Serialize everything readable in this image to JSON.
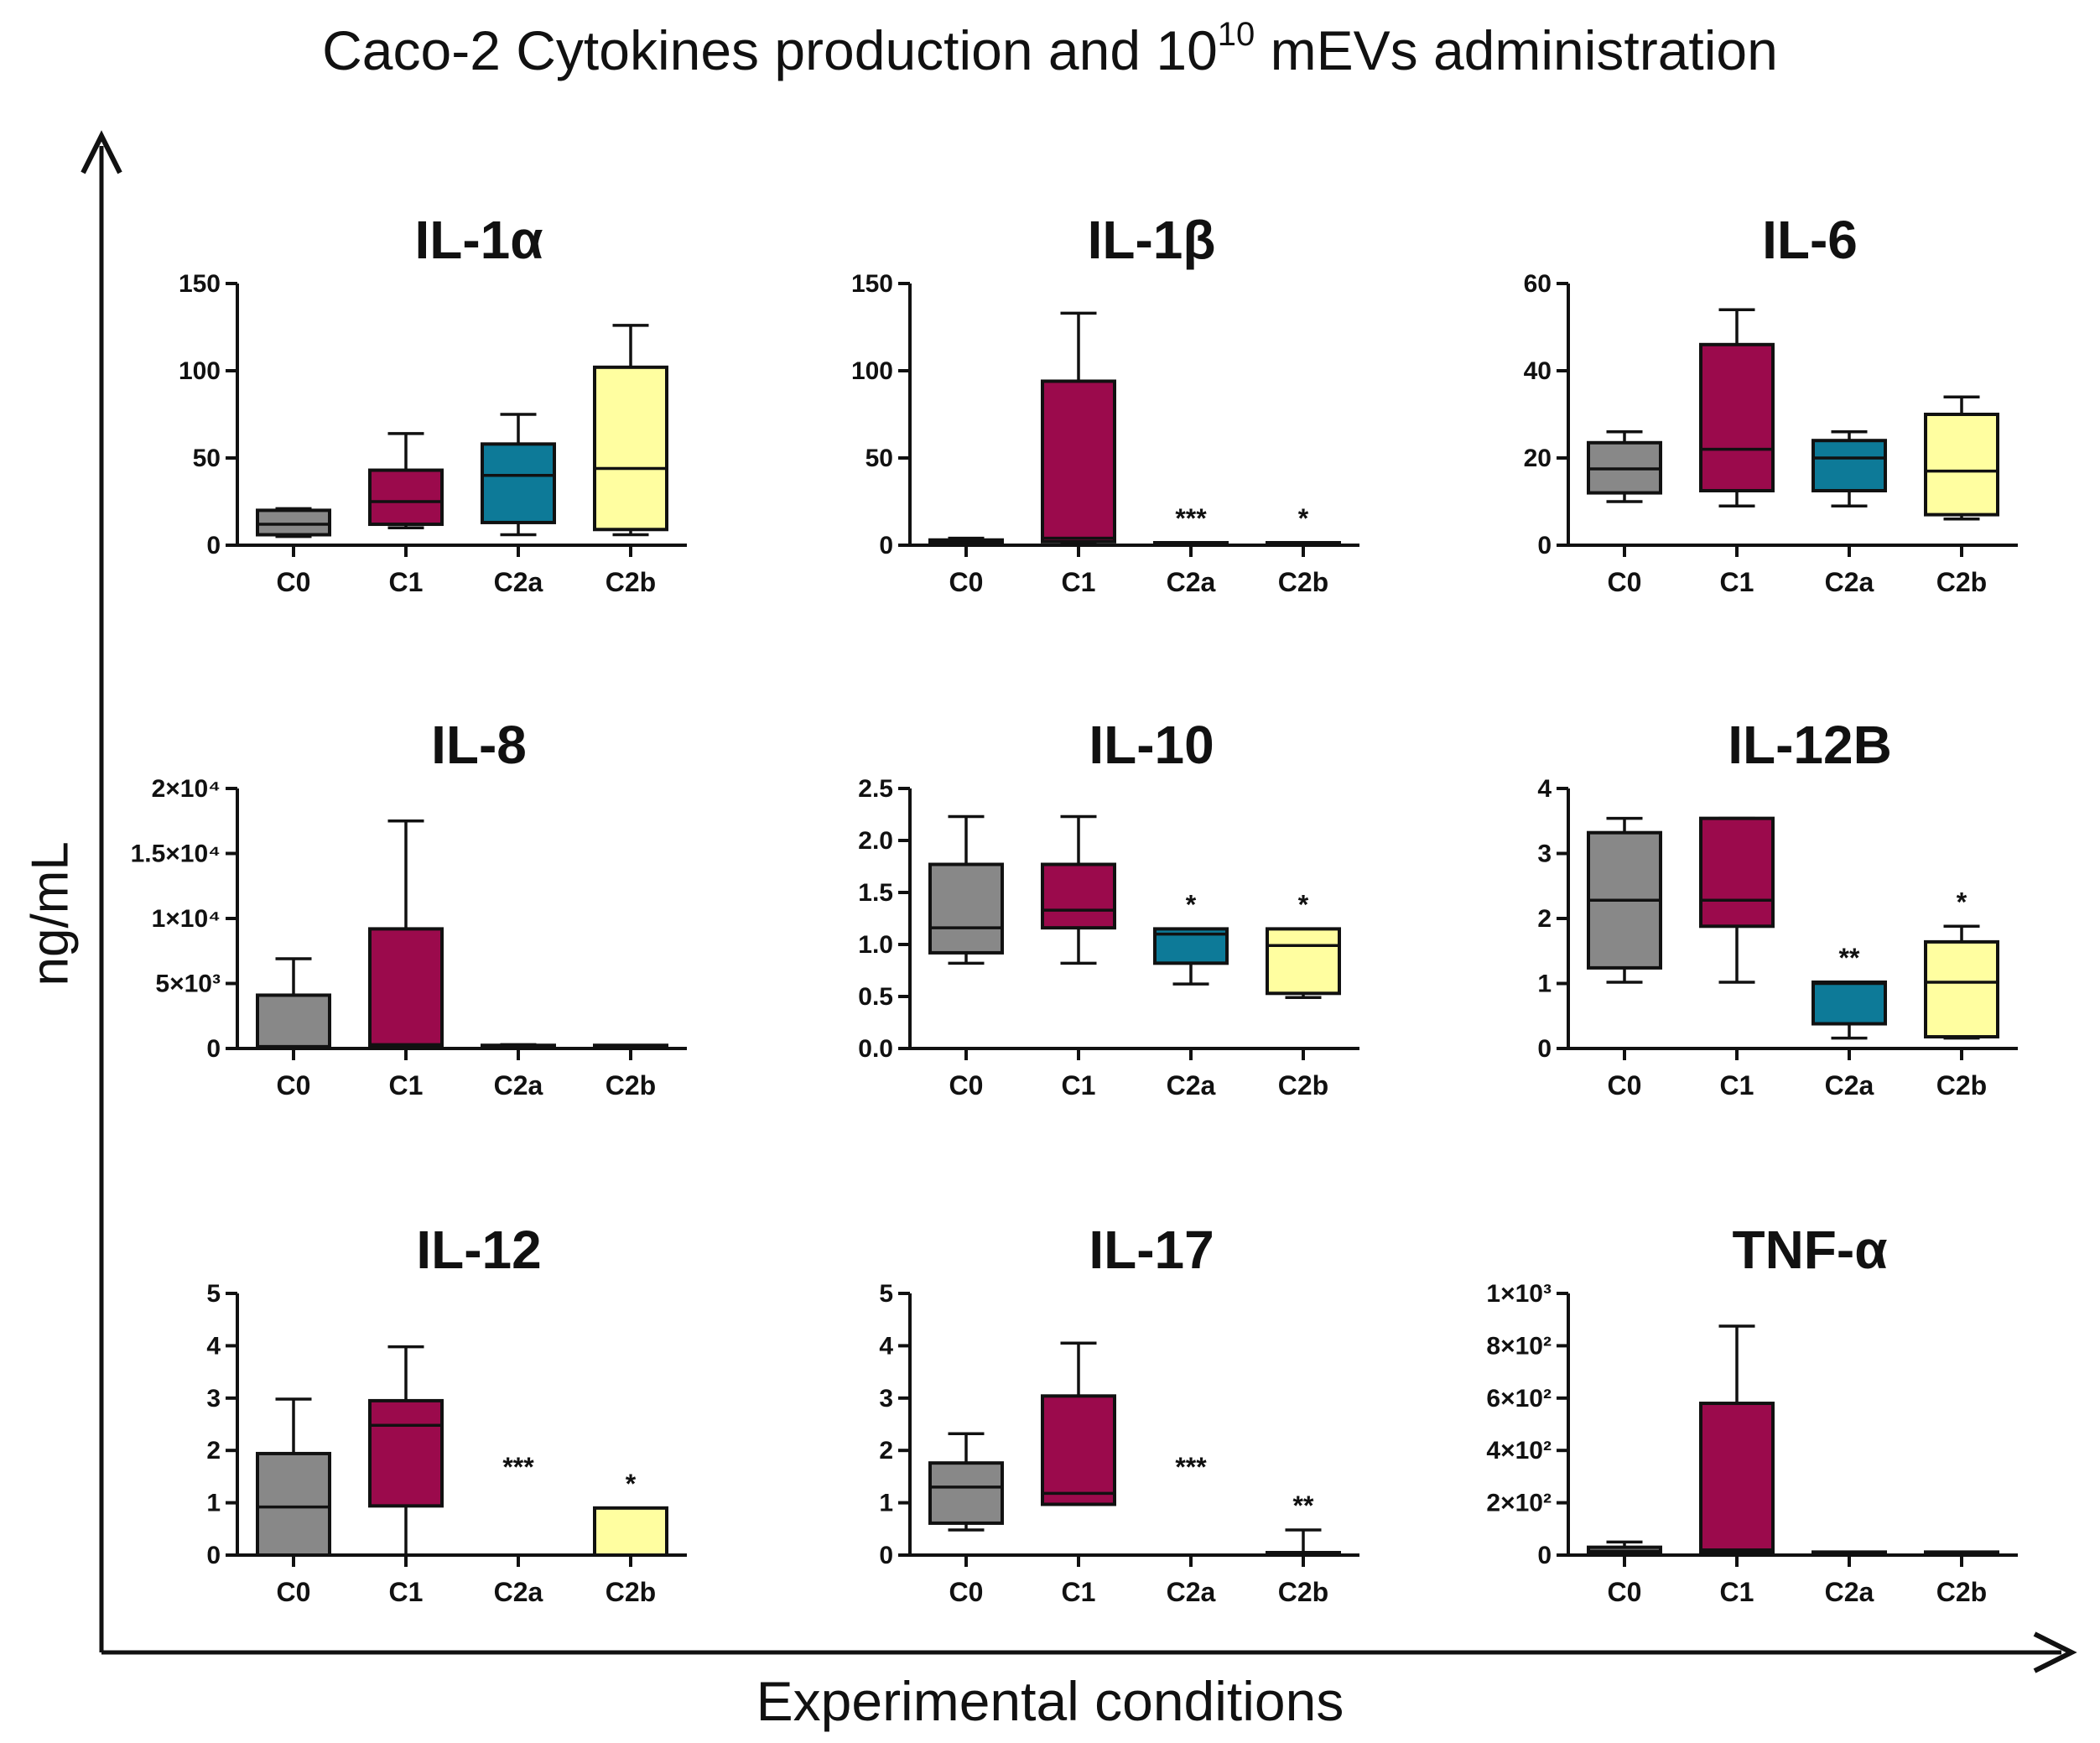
{
  "page": {
    "title_prefix": "Caco-2 Cytokines production and 10",
    "title_superscript": "10",
    "title_suffix": " mEVs administration",
    "x_axis_title": "Experimental conditions",
    "y_axis_title": "ng/mL"
  },
  "colors": {
    "C0": "#888888",
    "C1": "#9b0a4c",
    "C2a": "#0d7a98",
    "C2b": "#fffea0",
    "axis": "#111111"
  },
  "chart_data": [
    {
      "type": "box",
      "title": "IL-1α",
      "ylim": [
        0,
        150
      ],
      "yticks": [
        0,
        50,
        100,
        150
      ],
      "ytick_labels": [
        "0",
        "50",
        "100",
        "150"
      ],
      "categories": [
        "C0",
        "C1",
        "C2a",
        "C2b"
      ],
      "boxes": [
        {
          "min": 5,
          "q1": 6,
          "median": 12,
          "q3": 20,
          "max": 21,
          "sig": ""
        },
        {
          "min": 10,
          "q1": 12,
          "median": 25,
          "q3": 43,
          "max": 64,
          "sig": ""
        },
        {
          "min": 6,
          "q1": 13,
          "median": 40,
          "q3": 58,
          "max": 75,
          "sig": ""
        },
        {
          "min": 6,
          "q1": 9,
          "median": 44,
          "q3": 102,
          "max": 126,
          "sig": ""
        }
      ]
    },
    {
      "type": "box",
      "title": "IL-1β",
      "ylim": [
        0,
        150
      ],
      "yticks": [
        0,
        50,
        100,
        150
      ],
      "ytick_labels": [
        "0",
        "50",
        "100",
        "150"
      ],
      "categories": [
        "C0",
        "C1",
        "C2a",
        "C2b"
      ],
      "boxes": [
        {
          "min": 0,
          "q1": 0.5,
          "median": 1.5,
          "q3": 3,
          "max": 4,
          "sig": ""
        },
        {
          "min": 1,
          "q1": 2,
          "median": 4,
          "q3": 94,
          "max": 133,
          "sig": ""
        },
        {
          "min": 0,
          "q1": 0,
          "median": 0.5,
          "q3": 1,
          "max": 1.5,
          "sig": "***"
        },
        {
          "min": 0,
          "q1": 0,
          "median": 0.5,
          "q3": 1,
          "max": 1.5,
          "sig": "*"
        }
      ]
    },
    {
      "type": "box",
      "title": "IL-6",
      "ylim": [
        0,
        60
      ],
      "yticks": [
        0,
        20,
        40,
        60
      ],
      "ytick_labels": [
        "0",
        "20",
        "40",
        "60"
      ],
      "categories": [
        "C0",
        "C1",
        "C2a",
        "C2b"
      ],
      "boxes": [
        {
          "min": 10,
          "q1": 12,
          "median": 17.5,
          "q3": 23.5,
          "max": 26,
          "sig": ""
        },
        {
          "min": 9,
          "q1": 12.5,
          "median": 22,
          "q3": 46,
          "max": 54,
          "sig": ""
        },
        {
          "min": 9,
          "q1": 12.5,
          "median": 20,
          "q3": 24,
          "max": 26,
          "sig": ""
        },
        {
          "min": 6,
          "q1": 7,
          "median": 17,
          "q3": 30,
          "max": 34,
          "sig": ""
        }
      ]
    },
    {
      "type": "box",
      "title": "IL-8",
      "ylim": [
        0,
        20000
      ],
      "yticks": [
        0,
        5000,
        10000,
        15000,
        20000
      ],
      "ytick_labels": [
        "0",
        "5×10³",
        "1×10⁴",
        "1.5×10⁴",
        "2×10⁴"
      ],
      "categories": [
        "C0",
        "C1",
        "C2a",
        "C2b"
      ],
      "boxes": [
        {
          "min": 0,
          "q1": 50,
          "median": 150,
          "q3": 4100,
          "max": 6900,
          "sig": ""
        },
        {
          "min": 0,
          "q1": 150,
          "median": 300,
          "q3": 9200,
          "max": 17500,
          "sig": ""
        },
        {
          "min": 0,
          "q1": 50,
          "median": 100,
          "q3": 200,
          "max": 300,
          "sig": ""
        },
        {
          "min": 0,
          "q1": 50,
          "median": 100,
          "q3": 150,
          "max": 200,
          "sig": ""
        }
      ]
    },
    {
      "type": "box",
      "title": "IL-10",
      "ylim": [
        0,
        2.5
      ],
      "yticks": [
        0,
        0.5,
        1,
        1.5,
        2,
        2.5
      ],
      "ytick_labels": [
        "0.0",
        "0.5",
        "1.0",
        "1.5",
        "2.0",
        "2.5"
      ],
      "categories": [
        "C0",
        "C1",
        "C2a",
        "C2b"
      ],
      "boxes": [
        {
          "min": 0.82,
          "q1": 0.92,
          "median": 1.16,
          "q3": 1.77,
          "max": 2.23,
          "sig": ""
        },
        {
          "min": 0.82,
          "q1": 1.16,
          "median": 1.33,
          "q3": 1.77,
          "max": 2.23,
          "sig": ""
        },
        {
          "min": 0.62,
          "q1": 0.82,
          "median": 1.1,
          "q3": 1.15,
          "max": 1.15,
          "sig": "*"
        },
        {
          "min": 0.49,
          "q1": 0.53,
          "median": 0.99,
          "q3": 1.15,
          "max": 1.15,
          "sig": "*"
        }
      ]
    },
    {
      "type": "box",
      "title": "IL-12B",
      "ylim": [
        0,
        4
      ],
      "yticks": [
        0,
        1,
        2,
        3,
        4
      ],
      "ytick_labels": [
        "0",
        "1",
        "2",
        "3",
        "4"
      ],
      "categories": [
        "C0",
        "C1",
        "C2a",
        "C2b"
      ],
      "boxes": [
        {
          "min": 1.02,
          "q1": 1.24,
          "median": 2.28,
          "q3": 3.32,
          "max": 3.54,
          "sig": ""
        },
        {
          "min": 1.02,
          "q1": 1.88,
          "median": 2.28,
          "q3": 3.54,
          "max": 3.54,
          "sig": ""
        },
        {
          "min": 0.16,
          "q1": 0.38,
          "median": 1.0,
          "q3": 1.02,
          "max": 1.02,
          "sig": "**"
        },
        {
          "min": 0.16,
          "q1": 0.18,
          "median": 1.02,
          "q3": 1.64,
          "max": 1.88,
          "sig": "*"
        }
      ]
    },
    {
      "type": "box",
      "title": "IL-12",
      "ylim": [
        0,
        5
      ],
      "yticks": [
        0,
        1,
        2,
        3,
        4,
        5
      ],
      "ytick_labels": [
        "0",
        "1",
        "2",
        "3",
        "4",
        "5"
      ],
      "categories": [
        "C0",
        "C1",
        "C2a",
        "C2b"
      ],
      "boxes": [
        {
          "min": 0,
          "q1": 0,
          "median": 0.92,
          "q3": 1.94,
          "max": 2.98,
          "sig": ""
        },
        {
          "min": 0,
          "q1": 0.94,
          "median": 2.48,
          "q3": 2.95,
          "max": 3.98,
          "sig": ""
        },
        null,
        {
          "min": 0,
          "q1": 0,
          "median": 0,
          "q3": 0.9,
          "max": 0.9,
          "sig": "*"
        }
      ],
      "sig_only": {
        "2": "***"
      }
    },
    {
      "type": "box",
      "title": "IL-17",
      "ylim": [
        0,
        5
      ],
      "yticks": [
        0,
        1,
        2,
        3,
        4,
        5
      ],
      "ytick_labels": [
        "0",
        "1",
        "2",
        "3",
        "4",
        "5"
      ],
      "categories": [
        "C0",
        "C1",
        "C2a",
        "C2b"
      ],
      "boxes": [
        {
          "min": 0.48,
          "q1": 0.61,
          "median": 1.3,
          "q3": 1.76,
          "max": 2.32,
          "sig": ""
        },
        {
          "min": 0.97,
          "q1": 0.97,
          "median": 1.18,
          "q3": 3.04,
          "max": 4.05,
          "sig": ""
        },
        null,
        {
          "min": 0,
          "q1": 0,
          "median": 0,
          "q3": 0,
          "max": 0.48,
          "sig": "**"
        }
      ],
      "sig_only": {
        "2": "***"
      }
    },
    {
      "type": "box",
      "title": "TNF-α",
      "ylim": [
        0,
        1000
      ],
      "yticks": [
        0,
        200,
        400,
        600,
        800,
        1000
      ],
      "ytick_labels": [
        "0",
        "2×10²",
        "4×10²",
        "6×10²",
        "8×10²",
        "1×10³"
      ],
      "categories": [
        "C0",
        "C1",
        "C2a",
        "C2b"
      ],
      "boxes": [
        {
          "min": 0,
          "q1": 5,
          "median": 15,
          "q3": 30,
          "max": 50,
          "sig": ""
        },
        {
          "min": 0,
          "q1": 10,
          "median": 20,
          "q3": 580,
          "max": 875,
          "sig": ""
        },
        {
          "min": 0,
          "q1": 2,
          "median": 5,
          "q3": 8,
          "max": 10,
          "sig": ""
        },
        {
          "min": 0,
          "q1": 2,
          "median": 4,
          "q3": 6,
          "max": 10,
          "sig": ""
        }
      ]
    }
  ]
}
